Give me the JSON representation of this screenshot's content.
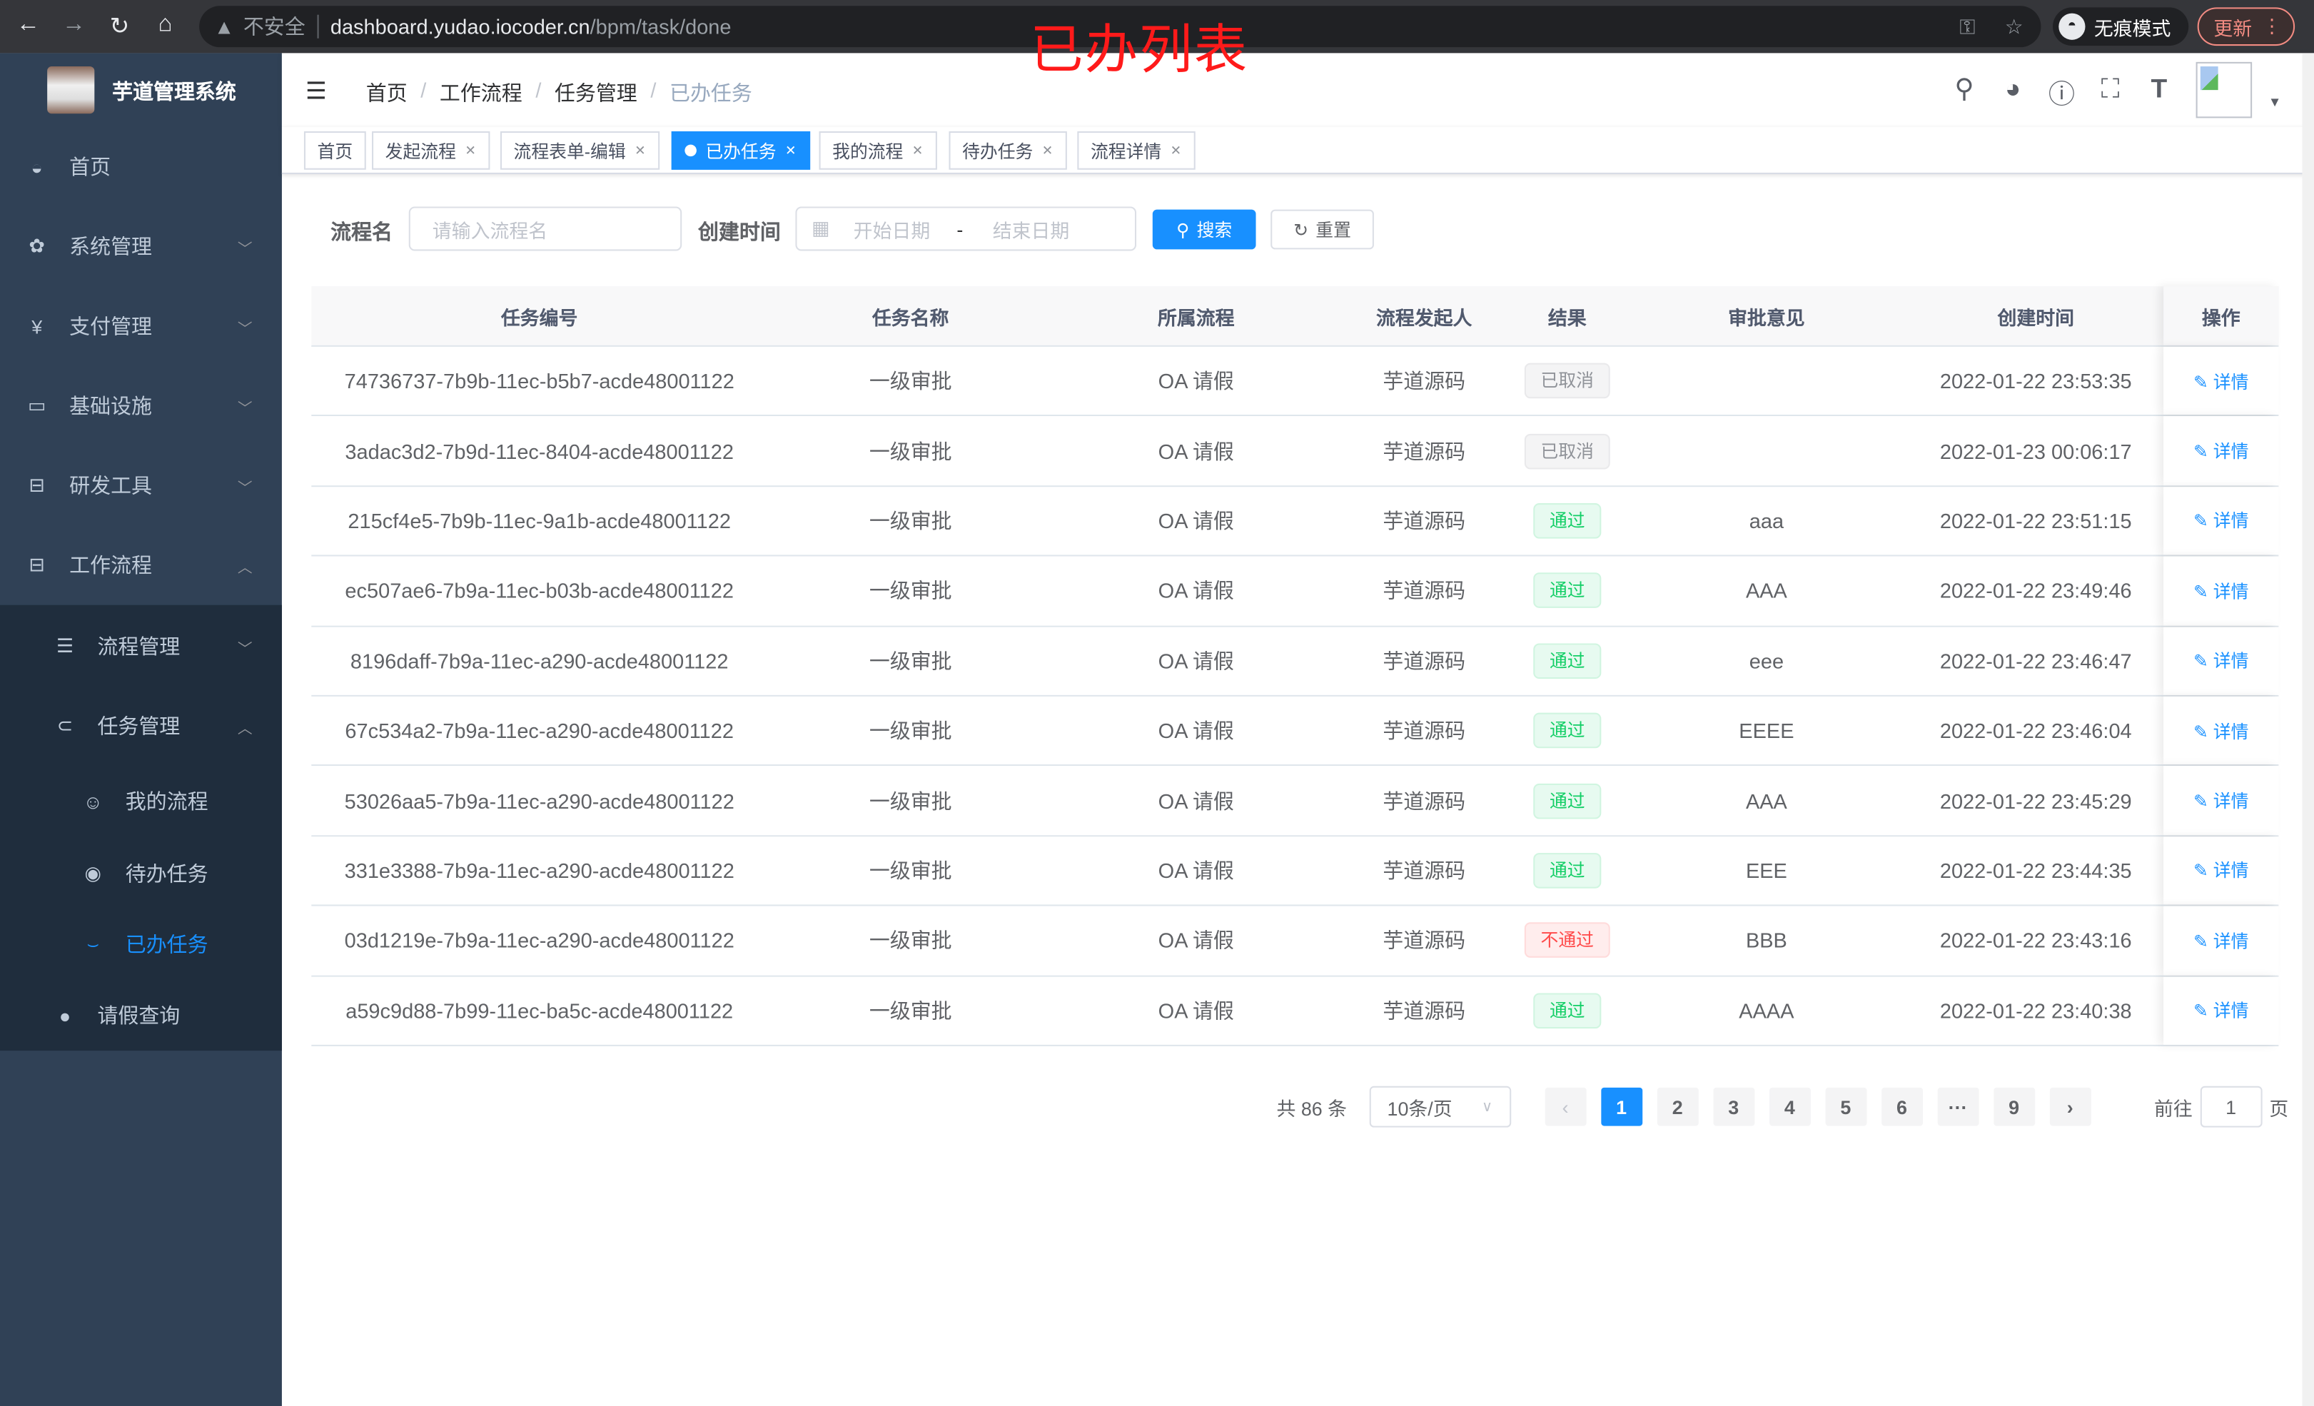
{
  "browser": {
    "security": "不安全",
    "url_host": "dashboard.yudao.iocoder.cn",
    "url_path": "/bpm/task/done",
    "incognito": "无痕模式",
    "update": "更新"
  },
  "annotation": "已办列表",
  "app": {
    "title": "芋道管理系统"
  },
  "sidebar": {
    "items": [
      {
        "label": "首页",
        "icon": "dashboard-icon"
      },
      {
        "label": "系统管理",
        "icon": "gear-icon"
      },
      {
        "label": "支付管理",
        "icon": "yen-icon"
      },
      {
        "label": "基础设施",
        "icon": "monitor-icon"
      },
      {
        "label": "研发工具",
        "icon": "toolbox-icon"
      },
      {
        "label": "工作流程",
        "icon": "toolbox-icon"
      }
    ],
    "sub": [
      {
        "label": "流程管理",
        "icon": "list-icon"
      },
      {
        "label": "任务管理",
        "icon": "task-icon"
      },
      {
        "label": "我的流程",
        "icon": "face-icon"
      },
      {
        "label": "待办任务",
        "icon": "eye-open-icon"
      },
      {
        "label": "已办任务",
        "icon": "eye-closed-icon"
      },
      {
        "label": "请假查询",
        "icon": "user-icon"
      }
    ]
  },
  "breadcrumb": [
    "首页",
    "工作流程",
    "任务管理",
    "已办任务"
  ],
  "tags": [
    "首页",
    "发起流程",
    "流程表单-编辑",
    "已办任务",
    "我的流程",
    "待办任务",
    "流程详情"
  ],
  "colors": {
    "primary": "#1890ff",
    "sidebar": "#304156",
    "submenu": "#1f2d3d",
    "pass": "#13ce66",
    "reject": "#ff4949",
    "cancel": "#909399"
  },
  "search": {
    "name_label": "流程名",
    "name_placeholder": "请输入流程名",
    "time_label": "创建时间",
    "start_placeholder": "开始日期",
    "range_sep": "-",
    "end_placeholder": "结束日期",
    "search_btn": "搜索",
    "reset_btn": "重置"
  },
  "table": {
    "columns": [
      "任务编号",
      "任务名称",
      "所属流程",
      "流程发起人",
      "结果",
      "审批意见",
      "创建时间",
      "操作"
    ],
    "action": "详情",
    "rows": [
      [
        "74736737-7b9b-11ec-b5b7-acde48001122",
        "一级审批",
        "OA 请假",
        "芋道源码",
        "已取消",
        "",
        "2022-01-22 23:53:35"
      ],
      [
        "3adac3d2-7b9d-11ec-8404-acde48001122",
        "一级审批",
        "OA 请假",
        "芋道源码",
        "已取消",
        "",
        "2022-01-23 00:06:17"
      ],
      [
        "215cf4e5-7b9b-11ec-9a1b-acde48001122",
        "一级审批",
        "OA 请假",
        "芋道源码",
        "通过",
        "aaa",
        "2022-01-22 23:51:15"
      ],
      [
        "ec507ae6-7b9a-11ec-b03b-acde48001122",
        "一级审批",
        "OA 请假",
        "芋道源码",
        "通过",
        "AAA",
        "2022-01-22 23:49:46"
      ],
      [
        "8196daff-7b9a-11ec-a290-acde48001122",
        "一级审批",
        "OA 请假",
        "芋道源码",
        "通过",
        "eee",
        "2022-01-22 23:46:47"
      ],
      [
        "67c534a2-7b9a-11ec-a290-acde48001122",
        "一级审批",
        "OA 请假",
        "芋道源码",
        "通过",
        "EEEE",
        "2022-01-22 23:46:04"
      ],
      [
        "53026aa5-7b9a-11ec-a290-acde48001122",
        "一级审批",
        "OA 请假",
        "芋道源码",
        "通过",
        "AAA",
        "2022-01-22 23:45:29"
      ],
      [
        "331e3388-7b9a-11ec-a290-acde48001122",
        "一级审批",
        "OA 请假",
        "芋道源码",
        "通过",
        "EEE",
        "2022-01-22 23:44:35"
      ],
      [
        "03d1219e-7b9a-11ec-a290-acde48001122",
        "一级审批",
        "OA 请假",
        "芋道源码",
        "不通过",
        "BBB",
        "2022-01-22 23:43:16"
      ],
      [
        "a59c9d88-7b99-11ec-ba5c-acde48001122",
        "一级审批",
        "OA 请假",
        "芋道源码",
        "通过",
        "AAAA",
        "2022-01-22 23:40:38"
      ]
    ]
  },
  "pagination": {
    "total": "共 86 条",
    "page_size": "10条/页",
    "pages": [
      "1",
      "2",
      "3",
      "4",
      "5",
      "6",
      "···",
      "9"
    ],
    "current": "1",
    "goto_label": "前往",
    "goto_value": "1",
    "page_unit": "页"
  }
}
